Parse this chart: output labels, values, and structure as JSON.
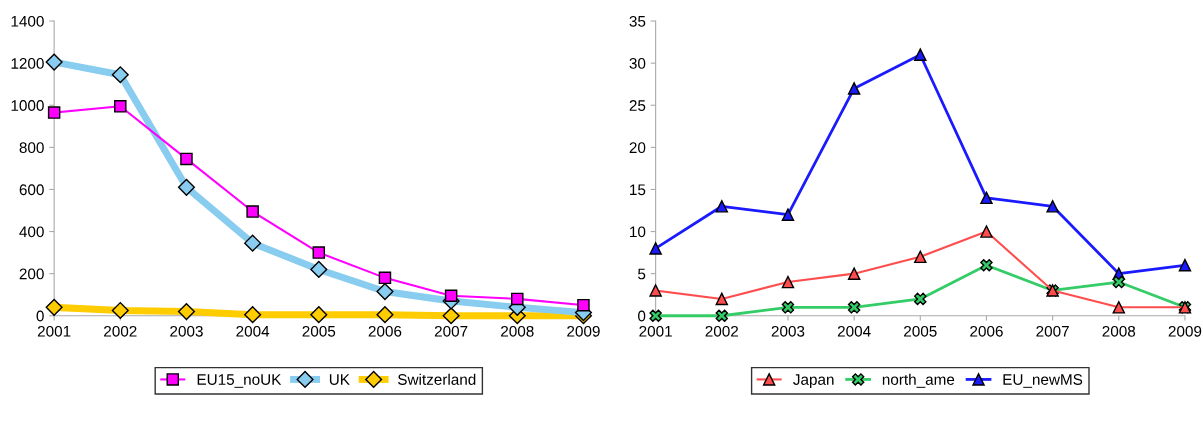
{
  "chart_data": [
    {
      "type": "line",
      "categories": [
        "2001",
        "2002",
        "2003",
        "2004",
        "2005",
        "2006",
        "2007",
        "2008",
        "2009"
      ],
      "ylim": [
        0,
        1400
      ],
      "yticks": [
        0,
        200,
        400,
        600,
        800,
        1000,
        1200,
        1400
      ],
      "legend": "bottom",
      "grid": false,
      "series": [
        {
          "name": "EU15_noUK",
          "color": "#ff00ff",
          "marker": "square",
          "values": [
            965,
            995,
            745,
            495,
            300,
            180,
            95,
            80,
            50
          ]
        },
        {
          "name": "UK",
          "color": "#88ccf0",
          "marker": "diamond",
          "values": [
            1205,
            1145,
            610,
            345,
            220,
            115,
            70,
            40,
            15
          ]
        },
        {
          "name": "Switzerland",
          "color": "#ffcc00",
          "marker": "diamond",
          "values": [
            40,
            25,
            20,
            5,
            5,
            5,
            0,
            0,
            0
          ]
        }
      ]
    },
    {
      "type": "line",
      "categories": [
        "2001",
        "2002",
        "2003",
        "2004",
        "2005",
        "2006",
        "2007",
        "2008",
        "2009"
      ],
      "ylim": [
        0,
        35
      ],
      "yticks": [
        0,
        5,
        10,
        15,
        20,
        25,
        30,
        35
      ],
      "legend": "bottom",
      "grid": false,
      "series": [
        {
          "name": "Japan",
          "color": "#ff4d4d",
          "marker": "triangle",
          "values": [
            3,
            2,
            4,
            5,
            7,
            10,
            3,
            1,
            1
          ]
        },
        {
          "name": "north_ame",
          "color": "#33cc66",
          "marker": "cross",
          "values": [
            0,
            0,
            1,
            1,
            2,
            6,
            3,
            4,
            1
          ]
        },
        {
          "name": "EU_newMS",
          "color": "#1a1aff",
          "marker": "triangle",
          "values": [
            8,
            13,
            12,
            27,
            31,
            14,
            13,
            5,
            6
          ]
        }
      ]
    }
  ]
}
